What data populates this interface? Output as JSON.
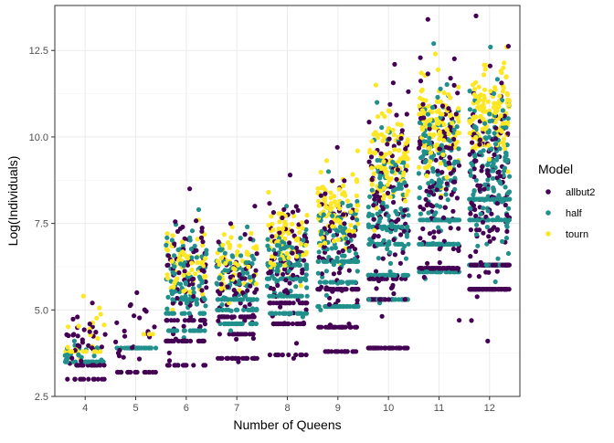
{
  "chart_data": {
    "type": "scatter",
    "title": "",
    "xlabel": "Number of Queens",
    "ylabel": "Log(Individuals)",
    "x_categories": [
      4,
      5,
      6,
      7,
      8,
      9,
      10,
      11,
      12
    ],
    "x_tick_labels": [
      "4",
      "5",
      "6",
      "7",
      "8",
      "9",
      "10",
      "11",
      "12"
    ],
    "ylim": [
      2.5,
      13.8
    ],
    "y_ticks": [
      2.5,
      5.0,
      7.5,
      10.0,
      12.5
    ],
    "y_tick_labels": [
      "2.5",
      "5.0",
      "7.5",
      "10.0",
      "12.5"
    ],
    "grid": true,
    "jitter": true,
    "legend": {
      "title": "Model",
      "placement": "right",
      "entries": [
        "allbut2",
        "half",
        "tourn"
      ]
    },
    "colors": {
      "allbut2": "#440154",
      "half": "#21908c",
      "tourn": "#fde725"
    },
    "series": [
      {
        "name": "allbut2",
        "groups": [
          {
            "x": 4,
            "bands": [
              3.0,
              3.4
            ],
            "min": 3.0,
            "max": 5.2,
            "n": 60
          },
          {
            "x": 5,
            "bands": [
              3.2
            ],
            "min": 3.2,
            "max": 5.5,
            "n": 40
          },
          {
            "x": 6,
            "bands": [
              3.4,
              4.1,
              4.7
            ],
            "min": 3.4,
            "max": 8.5,
            "n": 130
          },
          {
            "x": 7,
            "bands": [
              3.6,
              4.3,
              4.8
            ],
            "min": 3.5,
            "max": 8.0,
            "n": 130
          },
          {
            "x": 8,
            "bands": [
              3.7,
              4.6,
              5.2
            ],
            "min": 3.6,
            "max": 8.9,
            "n": 140
          },
          {
            "x": 9,
            "bands": [
              3.8,
              4.5,
              5.6
            ],
            "min": 3.8,
            "max": 9.7,
            "n": 150
          },
          {
            "x": 10,
            "bands": [
              3.9,
              5.3,
              5.9
            ],
            "min": 3.9,
            "max": 12.1,
            "n": 180
          },
          {
            "x": 11,
            "bands": [
              6.2
            ],
            "min": 4.7,
            "max": 13.4,
            "n": 230
          },
          {
            "x": 12,
            "bands": [
              5.6,
              6.3
            ],
            "min": 4.1,
            "max": 13.5,
            "n": 260
          }
        ]
      },
      {
        "name": "half",
        "groups": [
          {
            "x": 4,
            "bands": [
              3.5
            ],
            "min": 3.4,
            "max": 4.1,
            "n": 40
          },
          {
            "x": 5,
            "bands": [
              3.9
            ],
            "min": 3.9,
            "max": 3.9,
            "n": 30
          },
          {
            "x": 6,
            "bands": [
              4.4,
              4.9,
              5.3
            ],
            "min": 4.2,
            "max": 7.9,
            "n": 130
          },
          {
            "x": 7,
            "bands": [
              4.6,
              5.0,
              5.3
            ],
            "min": 4.4,
            "max": 7.4,
            "n": 130
          },
          {
            "x": 8,
            "bands": [
              4.9,
              5.4,
              5.9,
              6.3
            ],
            "min": 4.8,
            "max": 8.0,
            "n": 150
          },
          {
            "x": 9,
            "bands": [
              5.1,
              5.8,
              6.4
            ],
            "min": 5.0,
            "max": 9.0,
            "n": 160
          },
          {
            "x": 10,
            "bands": [
              5.3,
              6.0,
              6.9,
              7.4
            ],
            "min": 5.2,
            "max": 11.0,
            "n": 200
          },
          {
            "x": 11,
            "bands": [
              6.1,
              6.9,
              7.6
            ],
            "min": 5.9,
            "max": 12.7,
            "n": 240
          },
          {
            "x": 12,
            "bands": [
              6.3,
              7.6,
              8.2
            ],
            "min": 5.6,
            "max": 12.6,
            "n": 260
          }
        ]
      },
      {
        "name": "tourn",
        "groups": [
          {
            "x": 4,
            "bands": [
              3.8
            ],
            "min": 3.6,
            "max": 5.4,
            "n": 30
          },
          {
            "x": 5,
            "bands": [],
            "min": 4.3,
            "max": 4.3,
            "n": 3
          },
          {
            "x": 6,
            "bands": [],
            "min": 5.0,
            "max": 7.6,
            "n": 60
          },
          {
            "x": 7,
            "bands": [],
            "min": 5.2,
            "max": 7.4,
            "n": 60
          },
          {
            "x": 8,
            "bands": [],
            "min": 5.7,
            "max": 8.4,
            "n": 80
          },
          {
            "x": 9,
            "bands": [],
            "min": 6.3,
            "max": 9.6,
            "n": 90
          },
          {
            "x": 10,
            "bands": [],
            "min": 7.3,
            "max": 11.5,
            "n": 100
          },
          {
            "x": 11,
            "bands": [],
            "min": 8.3,
            "max": 12.4,
            "n": 120
          },
          {
            "x": 12,
            "bands": [],
            "min": 9.0,
            "max": 12.6,
            "n": 130
          }
        ]
      }
    ]
  }
}
